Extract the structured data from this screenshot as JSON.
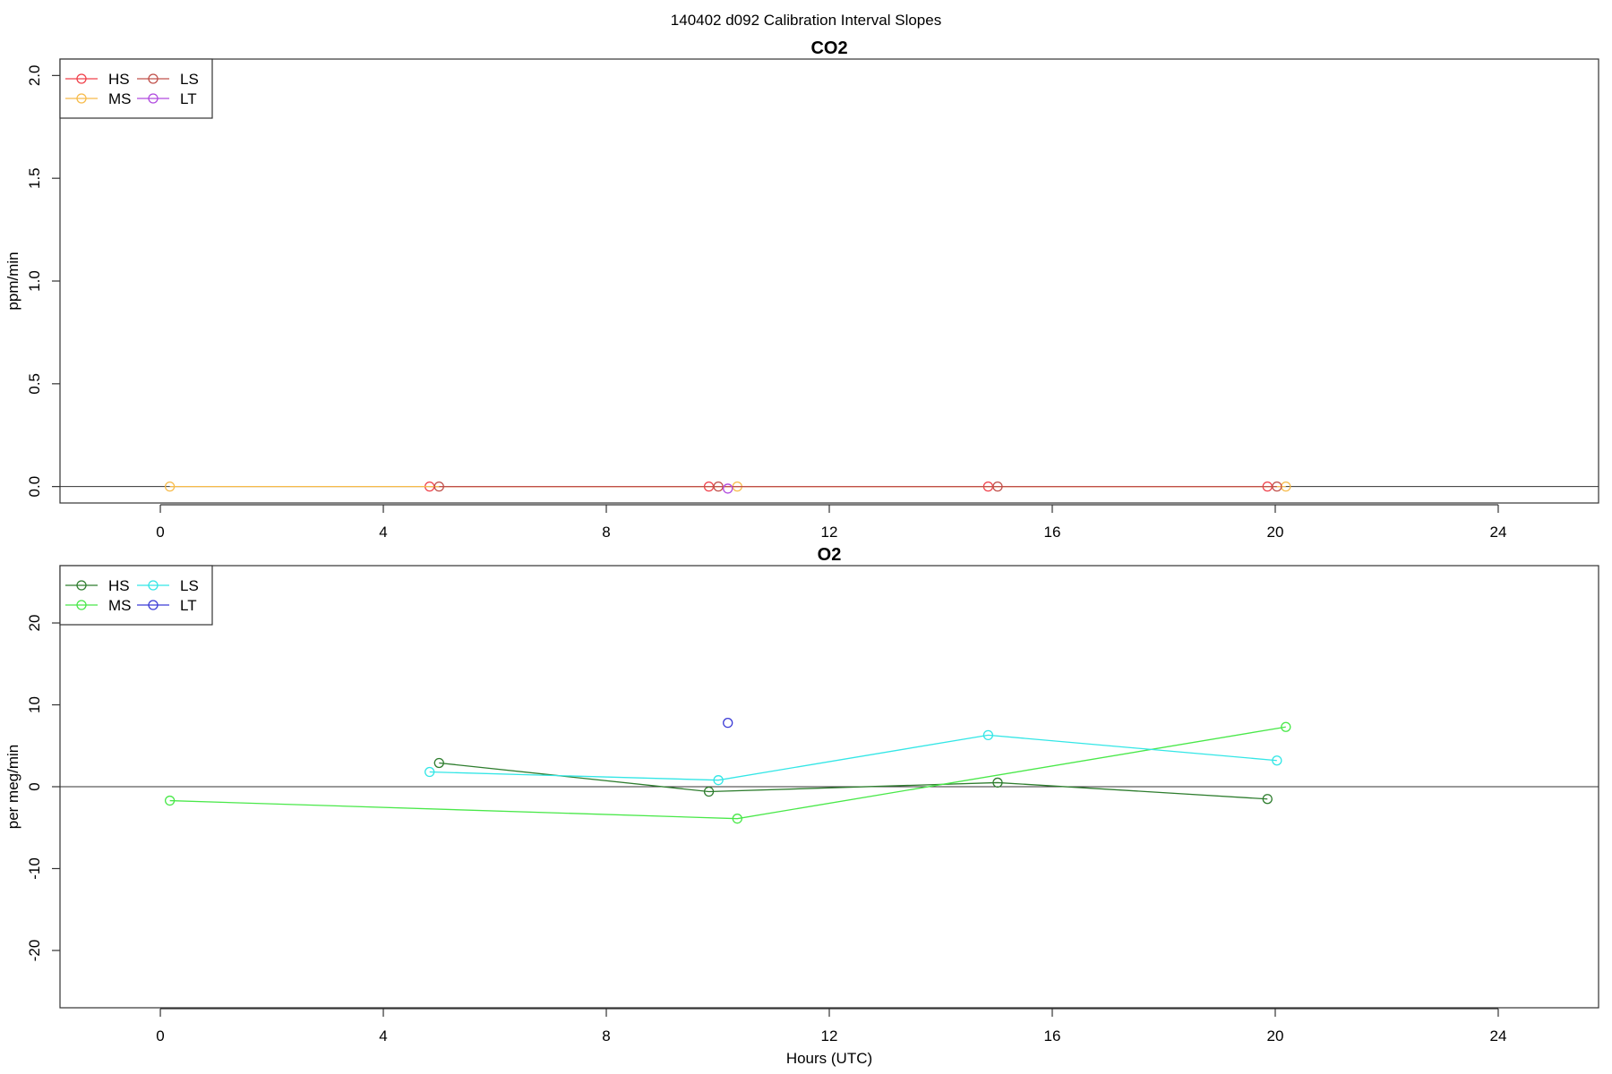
{
  "figure": {
    "title": "140402   d092   Calibration Interval Slopes"
  },
  "chart_data": [
    {
      "type": "line",
      "title": "CO2",
      "xlabel": "",
      "ylabel": "ppm/min",
      "xlim": [
        -1.8,
        25.8
      ],
      "ylim": [
        -0.08,
        2.08
      ],
      "xticks": [
        "0",
        "4",
        "8",
        "12",
        "16",
        "20",
        "24"
      ],
      "yticks": [
        "0.0",
        "0.5",
        "1.0",
        "1.5",
        "2.0"
      ],
      "zero_line": true,
      "grid": false,
      "legend_position": "top-left",
      "series": [
        {
          "name": "HS",
          "color": "#f0404a",
          "x": [
            4.83,
            9.84,
            14.85,
            19.86
          ],
          "y": [
            0.0,
            0.0,
            0.0,
            0.0
          ]
        },
        {
          "name": "MS",
          "color": "#f7bb4a",
          "x": [
            0.17,
            10.35,
            20.19
          ],
          "y": [
            0.0,
            0.0,
            0.0
          ]
        },
        {
          "name": "LS",
          "color": "#c0504a",
          "x": [
            5.0,
            10.01,
            15.02,
            20.03
          ],
          "y": [
            0.0,
            0.0,
            0.0,
            0.0
          ]
        },
        {
          "name": "LT",
          "color": "#b04adf",
          "x": [
            10.18
          ],
          "y": [
            -0.01
          ]
        }
      ]
    },
    {
      "type": "line",
      "title": "O2",
      "xlabel": "Hours (UTC)",
      "ylabel": "per meg/min",
      "xlim": [
        -1.8,
        25.8
      ],
      "ylim": [
        -27,
        27
      ],
      "xticks": [
        "0",
        "4",
        "8",
        "12",
        "16",
        "20",
        "24"
      ],
      "yticks": [
        "-20",
        "-10",
        "0",
        "10",
        "20"
      ],
      "zero_line": true,
      "grid": false,
      "legend_position": "top-left",
      "series": [
        {
          "name": "HS",
          "color": "#2e7d2e",
          "x": [
            5.0,
            9.84,
            15.02,
            19.86
          ],
          "y": [
            2.9,
            -0.6,
            0.5,
            -1.5
          ]
        },
        {
          "name": "MS",
          "color": "#49e849",
          "x": [
            0.17,
            10.35,
            20.19
          ],
          "y": [
            -1.7,
            -3.9,
            7.3
          ]
        },
        {
          "name": "LS",
          "color": "#33e6e6",
          "x": [
            4.83,
            10.01,
            14.85,
            20.03
          ],
          "y": [
            1.8,
            0.8,
            6.3,
            3.2
          ]
        },
        {
          "name": "LT",
          "color": "#3c3cd6",
          "x": [
            10.18
          ],
          "y": [
            7.8
          ]
        }
      ]
    }
  ]
}
